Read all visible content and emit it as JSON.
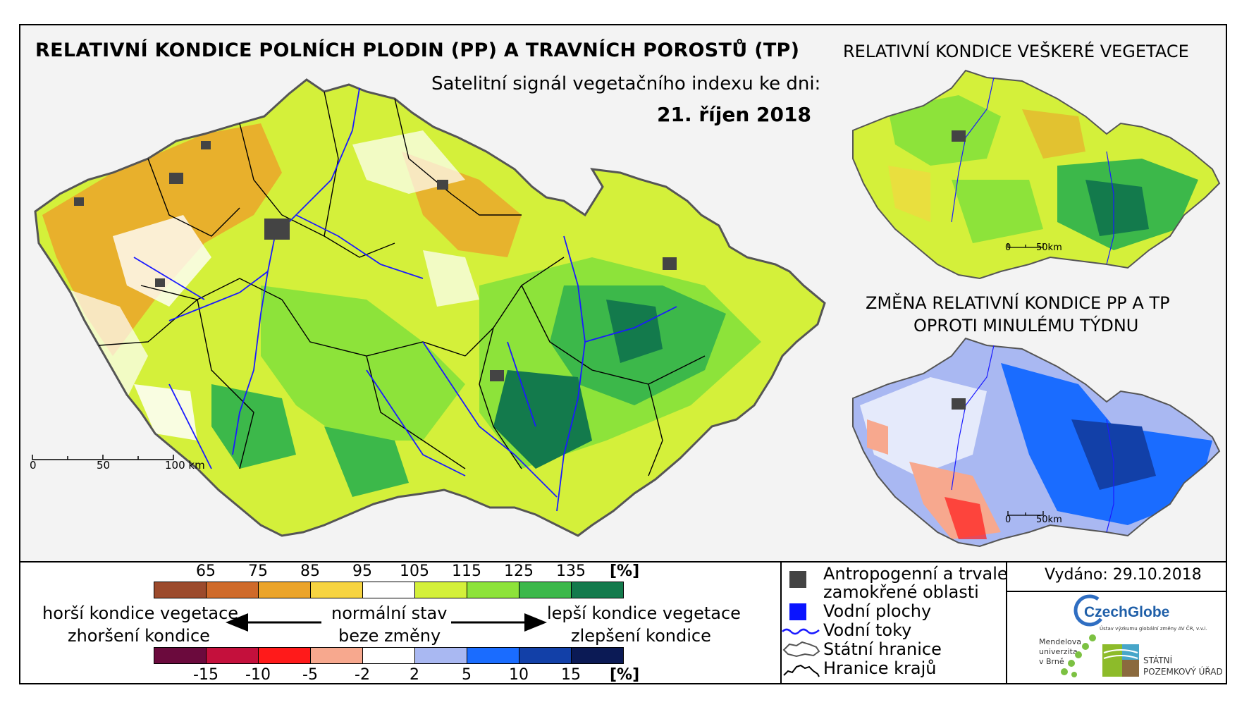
{
  "title": "RELATIVNÍ KONDICE POLNÍCH PLODIN (PP) A TRAVNÍCH POROSTŮ (TP)",
  "subtitle": "Satelitní signál vegetačního indexu ke dni:",
  "date": "21. říjen 2018",
  "right_title_top": "RELATIVNÍ KONDICE VEŠKERÉ VEGETACE",
  "right_title_bottom_line1": "ZMĚNA RELATIVNÍ KONDICE PP A TP",
  "right_title_bottom_line2": "OPROTI MINULÉMU TÝDNU",
  "scale_main": {
    "zero": "0",
    "mid": "50",
    "end": "100 km"
  },
  "scale_small_top": {
    "zero": "0",
    "end": "50km"
  },
  "scale_small_bottom": {
    "zero": "0",
    "end": "50km"
  },
  "legend_condition": {
    "labels": [
      "65",
      "75",
      "85",
      "95",
      "105",
      "115",
      "125",
      "135"
    ],
    "unit": "[%]",
    "colors": [
      "#9c4a2c",
      "#cf6a2a",
      "#eba42a",
      "#f7d441",
      "#ffffff",
      "#d4f03a",
      "#8de33a",
      "#3cb84a",
      "#137a4c"
    ]
  },
  "legend_change": {
    "labels": [
      "-15",
      "-10",
      "-5",
      "-2",
      "2",
      "5",
      "10",
      "15"
    ],
    "unit": "[%]",
    "colors": [
      "#6b0a3d",
      "#c4103c",
      "#ff1a1a",
      "#f7a88e",
      "#ffffff",
      "#a9b8f2",
      "#1a6cff",
      "#1240a8",
      "#0b1a55"
    ]
  },
  "legend_text": {
    "worse1": "horší kondice vegetace",
    "worse2": "zhoršení kondice",
    "normal1": "normální stav",
    "normal2": "beze změny",
    "better1": "lepší kondice vegetace",
    "better2": "zlepšení kondice"
  },
  "symbol_legend": [
    {
      "label": "Antropogenní a trvale",
      "label2": "zamokřené oblasti",
      "icon": "anthropogenic-square",
      "color": "#444444"
    },
    {
      "label": "Vodní plochy",
      "icon": "water-square",
      "color": "#0a14ff"
    },
    {
      "label": "Vodní toky",
      "icon": "river-line",
      "color": "#1a1aff"
    },
    {
      "label": "Státní hranice",
      "icon": "state-border-outline",
      "color": "#555555"
    },
    {
      "label": "Hranice krajů",
      "icon": "region-border-outline",
      "color": "#000000"
    }
  ],
  "issued": "Vydáno: 29.10.2018",
  "logos": {
    "czechglobe": "CzechGlobe",
    "czechglobe_sub": "Ústav výzkumu globální změny AV ČR, v.v.i.",
    "mendel1": "Mendelova",
    "mendel2": "univerzita",
    "mendel3": "v Brně",
    "spu1": "STÁTNÍ",
    "spu2": "POZEMKOVÝ ÚŘAD"
  }
}
